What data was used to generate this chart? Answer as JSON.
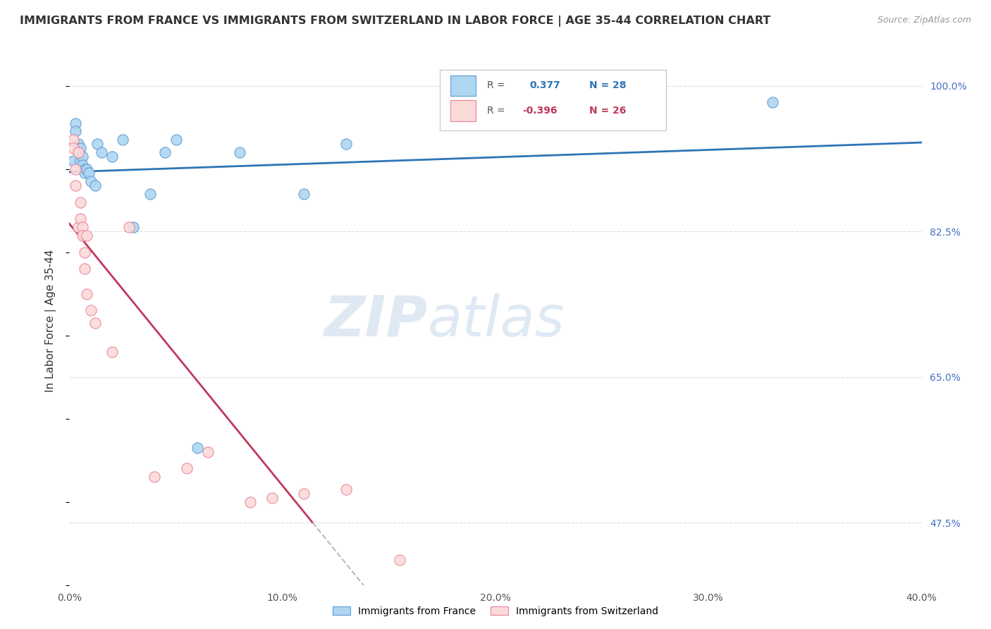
{
  "title": "IMMIGRANTS FROM FRANCE VS IMMIGRANTS FROM SWITZERLAND IN LABOR FORCE | AGE 35-44 CORRELATION CHART",
  "source": "Source: ZipAtlas.com",
  "ylabel": "In Labor Force | Age 35-44",
  "xlim": [
    0.0,
    0.4
  ],
  "ylim": [
    0.4,
    1.035
  ],
  "xtick_labels": [
    "0.0%",
    "",
    "10.0%",
    "",
    "20.0%",
    "",
    "30.0%",
    "",
    "40.0%"
  ],
  "xtick_values": [
    0.0,
    0.05,
    0.1,
    0.15,
    0.2,
    0.25,
    0.3,
    0.35,
    0.4
  ],
  "ytick_labels": [
    "47.5%",
    "65.0%",
    "82.5%",
    "100.0%"
  ],
  "ytick_values": [
    0.475,
    0.65,
    0.825,
    1.0
  ],
  "ytick_gridlines": [
    0.475,
    0.65,
    0.825,
    1.0
  ],
  "france_color": "#AED6F1",
  "switzerland_color": "#FADBD8",
  "france_edge_color": "#5B9BD5",
  "switzerland_edge_color": "#EC7FA0",
  "france_R": 0.377,
  "france_N": 28,
  "switzerland_R": -0.396,
  "switzerland_N": 26,
  "france_trend_color": "#2E75B6",
  "switzerland_trend_color": "#C0395A",
  "switzerland_trend_dash_color": "#BBBBBB",
  "watermark_zip": "ZIP",
  "watermark_atlas": "atlas",
  "france_x": [
    0.002,
    0.003,
    0.003,
    0.004,
    0.004,
    0.005,
    0.005,
    0.006,
    0.006,
    0.007,
    0.007,
    0.008,
    0.009,
    0.01,
    0.012,
    0.013,
    0.015,
    0.02,
    0.025,
    0.03,
    0.038,
    0.045,
    0.05,
    0.06,
    0.08,
    0.11,
    0.13,
    0.33
  ],
  "france_y": [
    0.91,
    0.955,
    0.945,
    0.93,
    0.92,
    0.925,
    0.91,
    0.915,
    0.905,
    0.9,
    0.895,
    0.9,
    0.895,
    0.885,
    0.88,
    0.93,
    0.92,
    0.915,
    0.935,
    0.83,
    0.87,
    0.92,
    0.935,
    0.565,
    0.92,
    0.87,
    0.93,
    0.98
  ],
  "switzerland_x": [
    0.002,
    0.002,
    0.003,
    0.003,
    0.004,
    0.004,
    0.005,
    0.005,
    0.006,
    0.006,
    0.007,
    0.007,
    0.008,
    0.008,
    0.01,
    0.012,
    0.02,
    0.028,
    0.04,
    0.055,
    0.065,
    0.085,
    0.095,
    0.11,
    0.13,
    0.155
  ],
  "switzerland_y": [
    0.935,
    0.925,
    0.9,
    0.88,
    0.92,
    0.83,
    0.86,
    0.84,
    0.83,
    0.82,
    0.8,
    0.78,
    0.82,
    0.75,
    0.73,
    0.715,
    0.68,
    0.83,
    0.53,
    0.54,
    0.56,
    0.5,
    0.505,
    0.51,
    0.515,
    0.43
  ]
}
